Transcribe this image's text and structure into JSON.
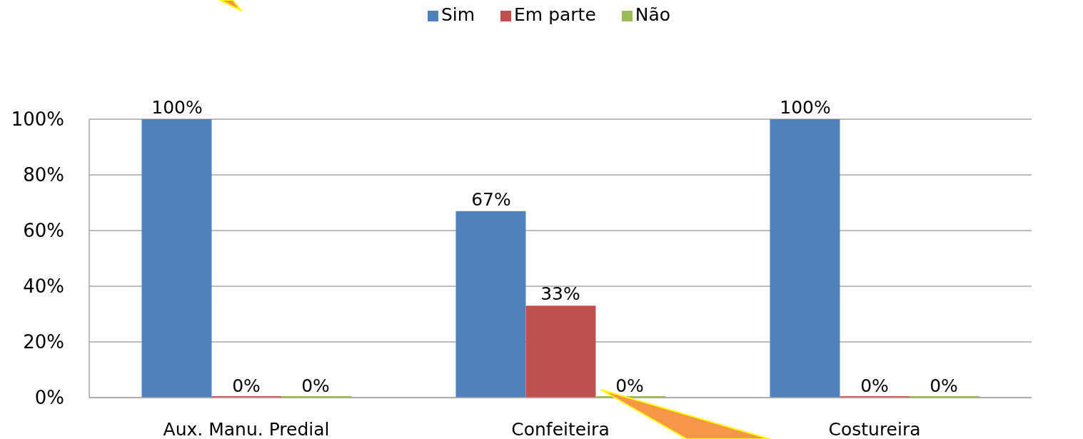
{
  "chart_data": {
    "type": "bar",
    "categories": [
      "Aux. Manu. Predial",
      "Confeiteira",
      "Costureira"
    ],
    "series": [
      {
        "name": "Sim",
        "color": "#4f81bd",
        "values": [
          100,
          67,
          100
        ],
        "value_labels": [
          "100%",
          "67%",
          "100%"
        ]
      },
      {
        "name": "Em parte",
        "color": "#c0504d",
        "values": [
          0,
          33,
          0
        ],
        "value_labels": [
          "0%",
          "33%",
          "0%"
        ]
      },
      {
        "name": "Não",
        "color": "#9bbb59",
        "values": [
          0,
          0,
          0
        ],
        "value_labels": [
          "0%",
          "0%",
          "0%"
        ]
      }
    ],
    "ylim": [
      0,
      100
    ],
    "yticks": [
      {
        "value": 0,
        "label": "0%"
      },
      {
        "value": 20,
        "label": "20%"
      },
      {
        "value": 40,
        "label": "40%"
      },
      {
        "value": 60,
        "label": "60%"
      },
      {
        "value": 80,
        "label": "80%"
      },
      {
        "value": 100,
        "label": "100%"
      }
    ],
    "grid": "y",
    "legend": "top"
  }
}
